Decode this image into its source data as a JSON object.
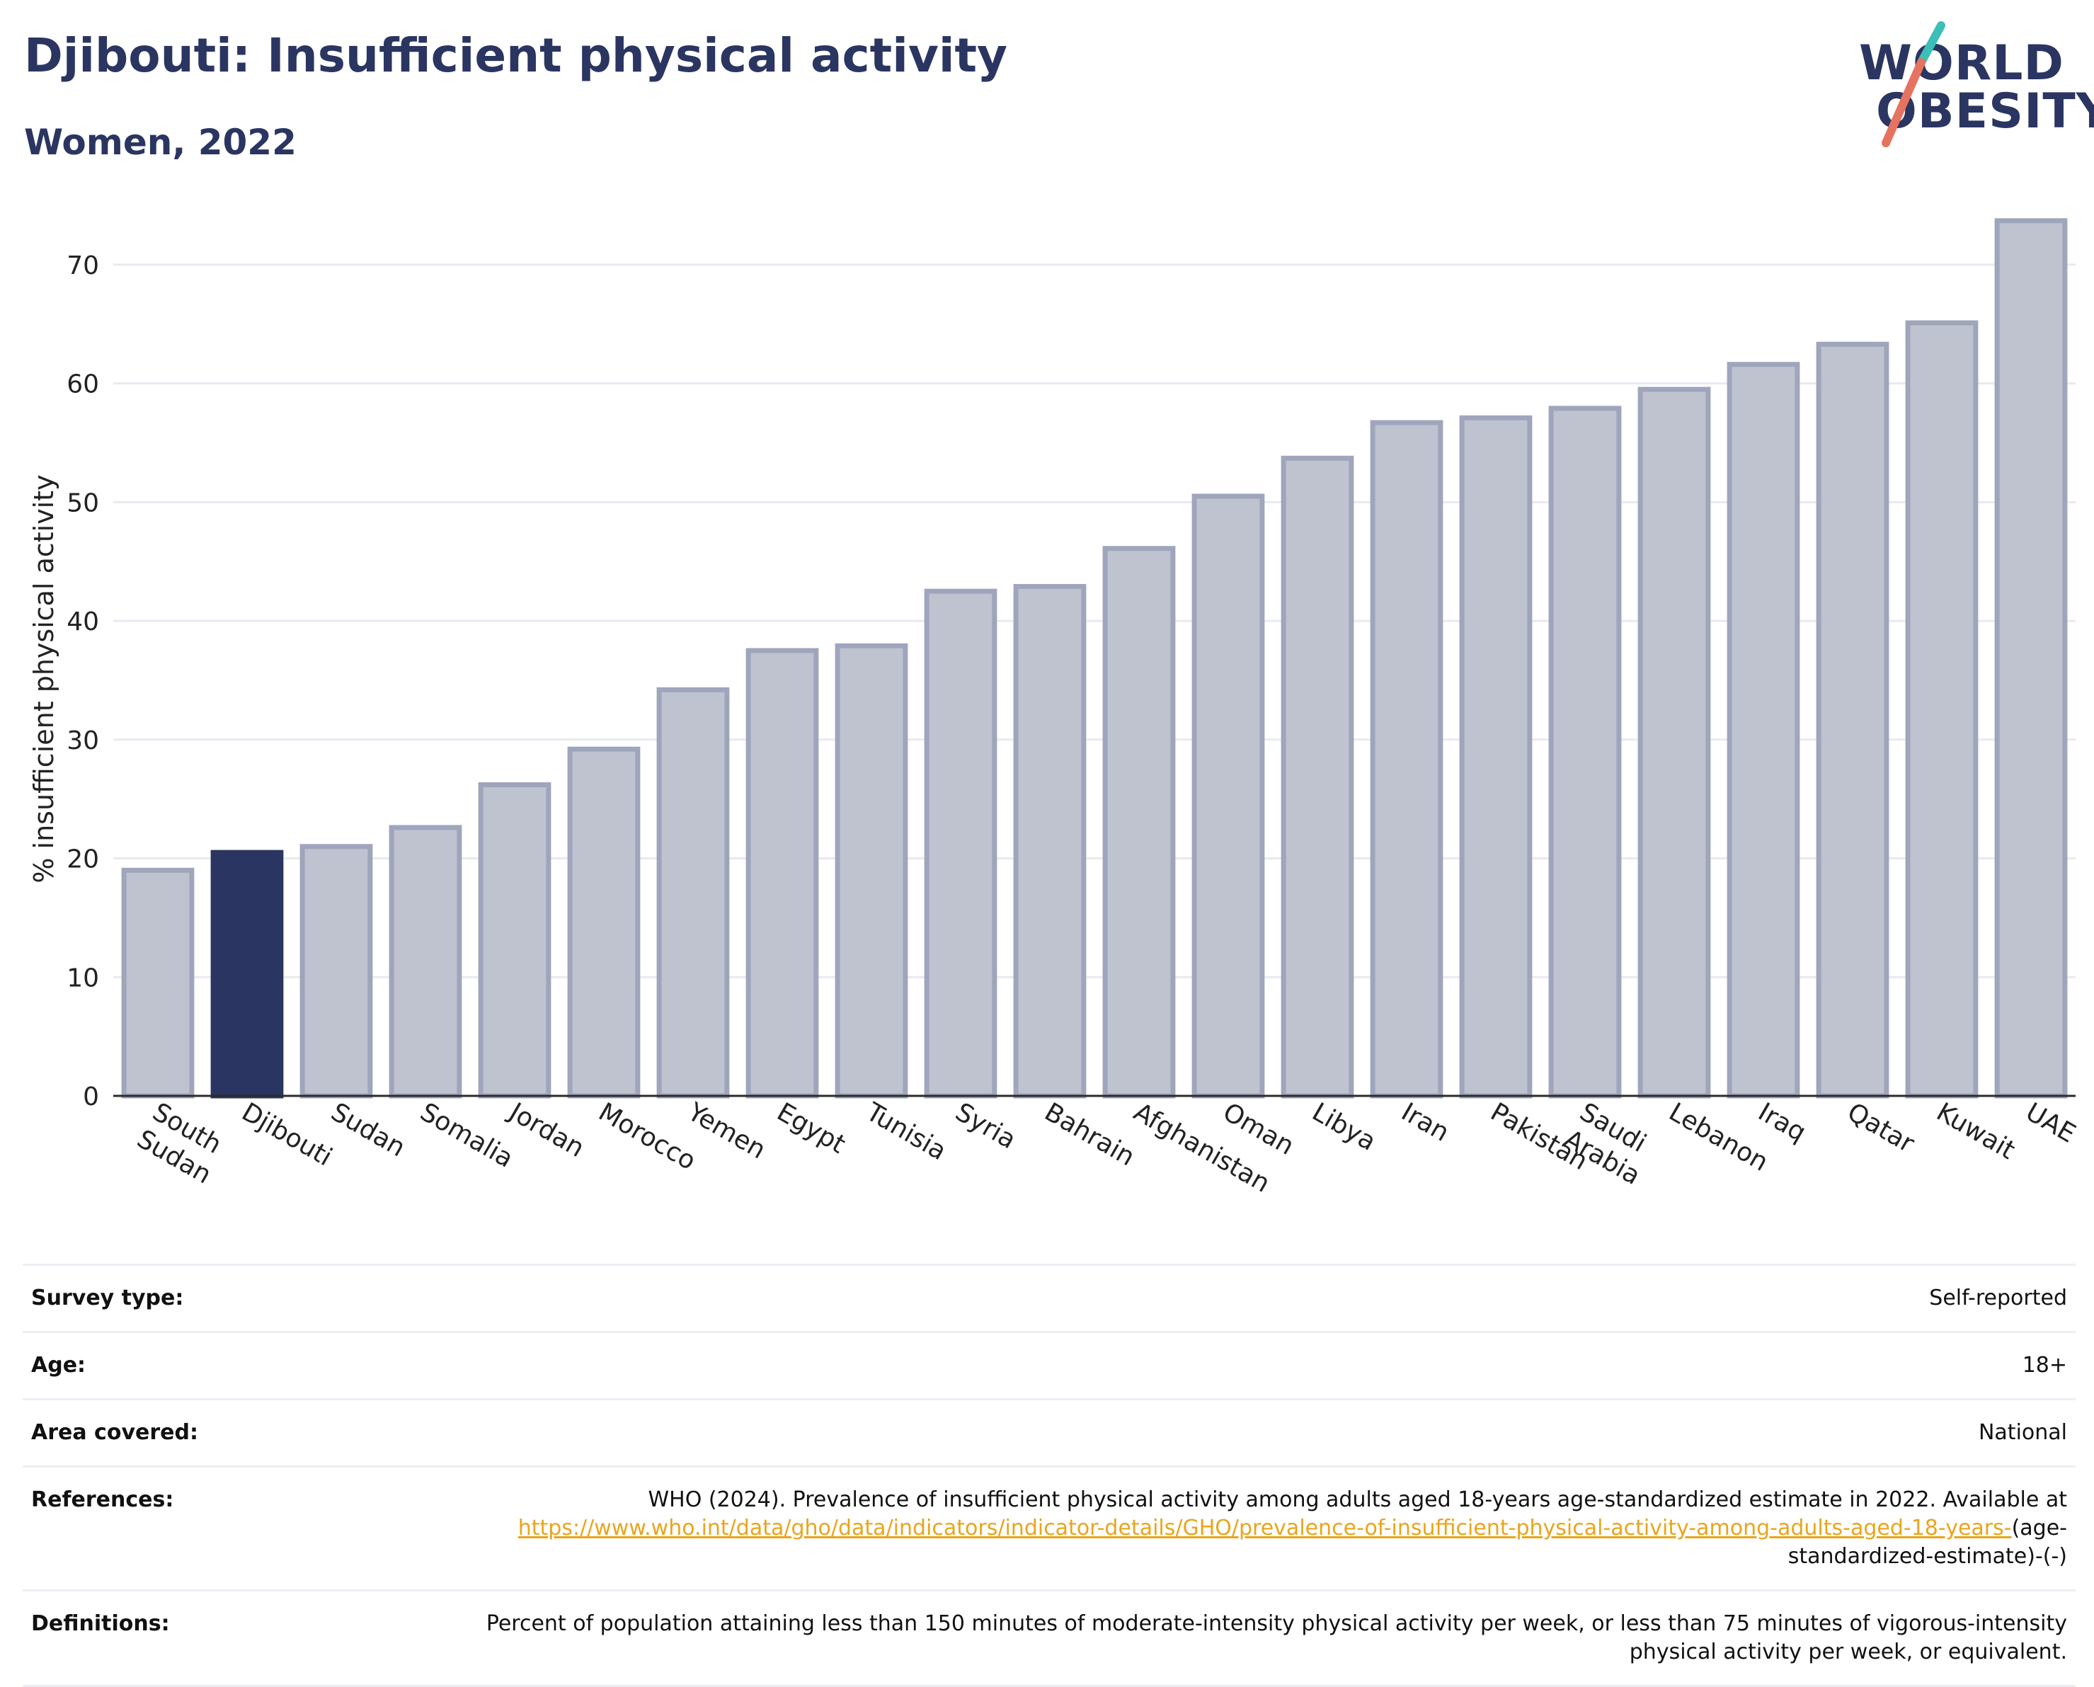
{
  "header": {
    "title": "Djibouti: Insufficient physical activity",
    "subtitle": "Women, 2022"
  },
  "logo": {
    "line1": "WORLD",
    "line2": "OBESITY",
    "slash_colors": [
      "#3bbfb8",
      "#e5735f"
    ]
  },
  "chart_data": {
    "type": "bar",
    "ylabel": "% insufficient physical activity",
    "ylim": [
      0,
      75
    ],
    "yticks": [
      0,
      10,
      20,
      30,
      40,
      50,
      60,
      70
    ],
    "grid": true,
    "highlight": "Djibouti",
    "colors": {
      "bar_fill": "#bfc3d0",
      "bar_stroke": "#9fa5bb",
      "highlight_fill": "#2b3561",
      "grid": "#e8eaf0",
      "axis": "#2b2b2b"
    },
    "categories": [
      "South Sudan",
      "Djibouti",
      "Sudan",
      "Somalia",
      "Jordan",
      "Morocco",
      "Yemen",
      "Egypt",
      "Tunisia",
      "Syria",
      "Bahrain",
      "Afghanistan",
      "Oman",
      "Libya",
      "Iran",
      "Pakistan",
      "Saudi Arabia",
      "Lebanon",
      "Iraq",
      "Qatar",
      "Kuwait",
      "UAE"
    ],
    "values": [
      19.0,
      20.5,
      21.0,
      22.6,
      26.2,
      29.2,
      34.2,
      37.5,
      37.9,
      42.5,
      42.9,
      46.1,
      50.5,
      53.7,
      56.7,
      57.1,
      57.9,
      59.5,
      61.6,
      63.3,
      65.1,
      73.7
    ]
  },
  "metadata": {
    "rows": [
      {
        "label": "Survey type:",
        "value": "Self-reported"
      },
      {
        "label": "Age:",
        "value": "18+"
      },
      {
        "label": "Area covered:",
        "value": "National"
      }
    ],
    "references": {
      "label": "References:",
      "text": "WHO (2024). Prevalence of insufficient physical activity among adults aged 18-years age-standardized estimate in 2022. Available at",
      "link": "https://www.who.int/data/gho/data/indicators/indicator-details/GHO/prevalence-of-insufficient-physical-activity-among-adults-aged-18-years-",
      "suffix": "(age-standardized-estimate)-(-)"
    },
    "definitions": {
      "label": "Definitions:",
      "text": "Percent of population attaining less than 150 minutes of moderate-intensity physical activity per week, or less than 75 minutes of vigorous-intensity physical activity per week, or equivalent."
    }
  }
}
